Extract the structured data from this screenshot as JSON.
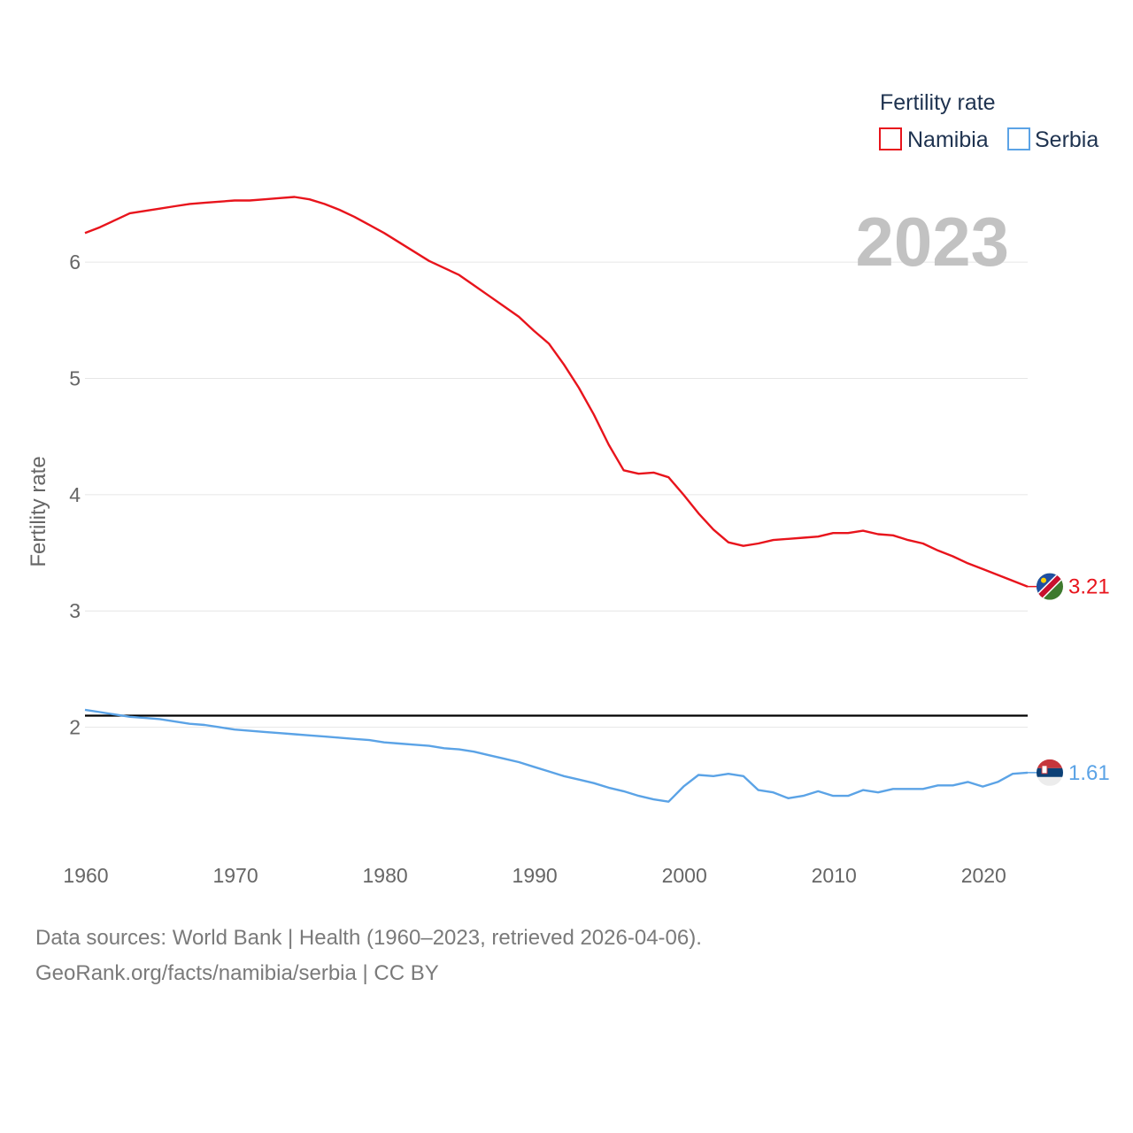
{
  "chart_data": {
    "type": "line",
    "title": "",
    "year_label": "2023",
    "ylabel": "Fertility rate",
    "xlabel": "",
    "xlim": [
      1960,
      2023
    ],
    "ylim": [
      1.0,
      6.8
    ],
    "yticks": [
      2,
      3,
      4,
      5,
      6
    ],
    "xticks": [
      1960,
      1970,
      1980,
      1990,
      2000,
      2010,
      2020
    ],
    "reference_line": 2.1,
    "legend": {
      "title": "Fertility rate",
      "position": "top-right",
      "entries": [
        "Namibia",
        "Serbia"
      ]
    },
    "x": [
      1960,
      1961,
      1962,
      1963,
      1964,
      1965,
      1966,
      1967,
      1968,
      1969,
      1970,
      1971,
      1972,
      1973,
      1974,
      1975,
      1976,
      1977,
      1978,
      1979,
      1980,
      1981,
      1982,
      1983,
      1984,
      1985,
      1986,
      1987,
      1988,
      1989,
      1990,
      1991,
      1992,
      1993,
      1994,
      1995,
      1996,
      1997,
      1998,
      1999,
      2000,
      2001,
      2002,
      2003,
      2004,
      2005,
      2006,
      2007,
      2008,
      2009,
      2010,
      2011,
      2012,
      2013,
      2014,
      2015,
      2016,
      2017,
      2018,
      2019,
      2020,
      2021,
      2022,
      2023
    ],
    "series": [
      {
        "name": "Namibia",
        "color": "#e8141c",
        "end_label": "3.21",
        "values": [
          6.25,
          6.3,
          6.36,
          6.42,
          6.44,
          6.46,
          6.48,
          6.5,
          6.51,
          6.52,
          6.53,
          6.53,
          6.54,
          6.55,
          6.56,
          6.54,
          6.5,
          6.45,
          6.39,
          6.32,
          6.25,
          6.17,
          6.09,
          6.01,
          5.95,
          5.89,
          5.8,
          5.71,
          5.62,
          5.53,
          5.41,
          5.3,
          5.12,
          4.92,
          4.69,
          4.43,
          4.21,
          4.18,
          4.19,
          4.15,
          4.0,
          3.84,
          3.7,
          3.59,
          3.56,
          3.58,
          3.61,
          3.62,
          3.63,
          3.64,
          3.67,
          3.67,
          3.69,
          3.66,
          3.65,
          3.61,
          3.58,
          3.52,
          3.47,
          3.41,
          3.36,
          3.31,
          3.26,
          3.21
        ]
      },
      {
        "name": "Serbia",
        "color": "#5ba3e6",
        "end_label": "1.61",
        "values": [
          2.15,
          2.13,
          2.11,
          2.09,
          2.08,
          2.07,
          2.05,
          2.03,
          2.02,
          2.0,
          1.98,
          1.97,
          1.96,
          1.95,
          1.94,
          1.93,
          1.92,
          1.91,
          1.9,
          1.89,
          1.87,
          1.86,
          1.85,
          1.84,
          1.82,
          1.81,
          1.79,
          1.76,
          1.73,
          1.7,
          1.66,
          1.62,
          1.58,
          1.55,
          1.52,
          1.48,
          1.45,
          1.41,
          1.38,
          1.36,
          1.49,
          1.59,
          1.58,
          1.6,
          1.58,
          1.46,
          1.44,
          1.39,
          1.41,
          1.45,
          1.41,
          1.41,
          1.46,
          1.44,
          1.47,
          1.47,
          1.47,
          1.5,
          1.5,
          1.53,
          1.49,
          1.53,
          1.6,
          1.61
        ]
      }
    ]
  },
  "footer": {
    "source_line": "Data sources: World Bank | Health (1960–2023, retrieved 2026-04-06).",
    "url_line": "GeoRank.org/facts/namibia/serbia | CC BY"
  }
}
